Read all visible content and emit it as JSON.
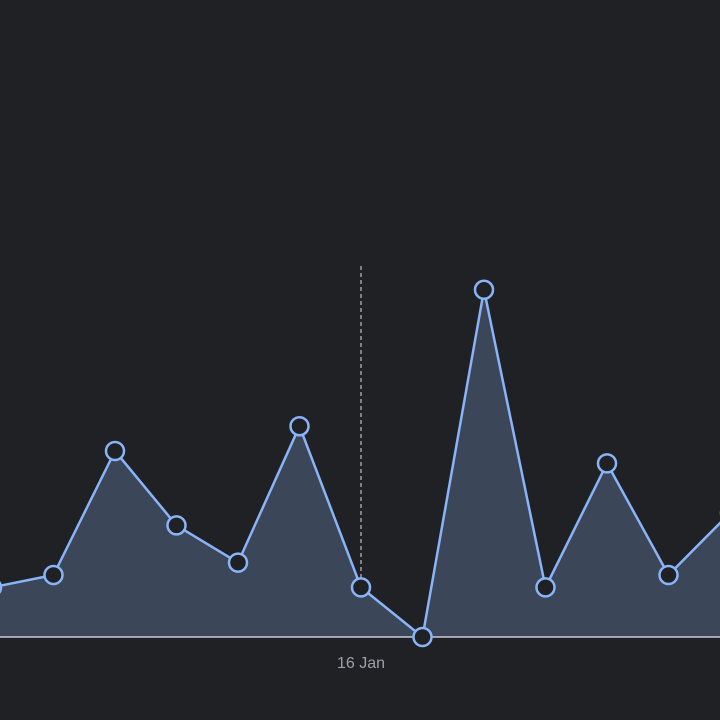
{
  "chart_data": {
    "type": "area",
    "x_tick_labels": [
      {
        "label": "16 Jan",
        "index": 6
      }
    ],
    "marker_index": 6,
    "series": [
      {
        "values": [
          4,
          5,
          15,
          9,
          6,
          17,
          4,
          0,
          28,
          4,
          14,
          5,
          10
        ]
      }
    ],
    "ylim": [
      0,
      50
    ],
    "grid": false,
    "legend": "none"
  },
  "colors": {
    "background": "#202125",
    "line": "#8ab4f8",
    "fill": "#3c4659",
    "baseline": "#c8cdd6",
    "marker_line": "#bdc1c6",
    "point_fill": "#202125",
    "tick_text": "#9aa0a6"
  }
}
